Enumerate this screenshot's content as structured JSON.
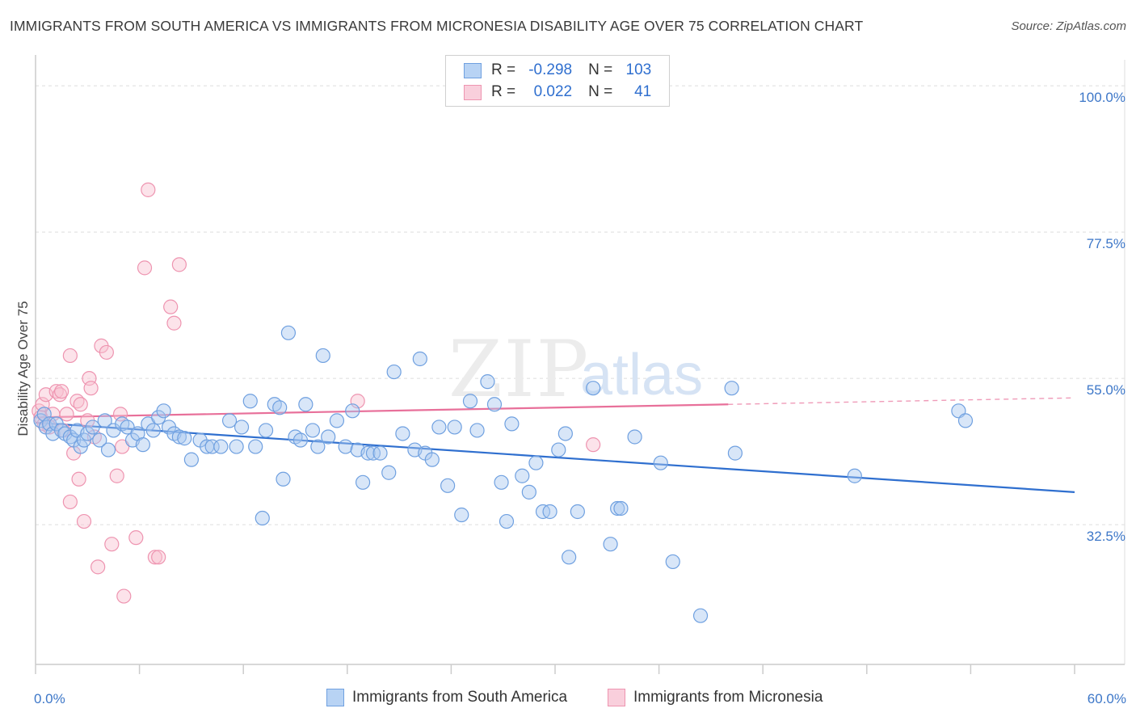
{
  "title": "IMMIGRANTS FROM SOUTH AMERICA VS IMMIGRANTS FROM MICRONESIA DISABILITY AGE OVER 75 CORRELATION CHART",
  "source": "Source: ZipAtlas.com",
  "legend": {
    "r_label": "R =",
    "n_label": "N =",
    "rows": [
      {
        "r": "-0.298",
        "n": "103"
      },
      {
        "r": "0.022",
        "n": "41"
      }
    ]
  },
  "watermark": {
    "zip": "ZIP",
    "atlas": "atlas"
  },
  "colors": {
    "blue_fill": "#a9c8f0",
    "blue_stroke": "#6fa0e0",
    "blue_line": "#2f6fcf",
    "pink_fill": "#f8c0d0",
    "pink_stroke": "#ee94b0",
    "pink_line": "#e8709a",
    "axis_text": "#3d77c8",
    "grid": "#dddddd"
  },
  "chart_data": {
    "type": "scatter",
    "title": "IMMIGRANTS FROM SOUTH AMERICA VS IMMIGRANTS FROM MICRONESIA DISABILITY AGE OVER 75 CORRELATION CHART",
    "xlabel": "",
    "ylabel": "Disability Age Over 75",
    "xlim": [
      0,
      60
    ],
    "ylim": [
      11,
      104
    ],
    "x_tick_labels": [
      "0.0%",
      "60.0%"
    ],
    "y_ticks": [
      32.5,
      55.0,
      77.5,
      100.0
    ],
    "y_tick_labels": [
      "32.5%",
      "55.0%",
      "77.5%",
      "100.0%"
    ],
    "grid": true,
    "series": [
      {
        "name": "Immigrants from South America",
        "color": "#6fa0e0",
        "trend": {
          "x": [
            0,
            60
          ],
          "y": [
            48.2,
            37.5
          ]
        },
        "points": [
          [
            0.3,
            48.5
          ],
          [
            0.5,
            49.5
          ],
          [
            0.6,
            47.5
          ],
          [
            0.8,
            48
          ],
          [
            1.0,
            46.5
          ],
          [
            1.2,
            48
          ],
          [
            1.5,
            47
          ],
          [
            1.7,
            46.5
          ],
          [
            2.0,
            46
          ],
          [
            2.2,
            45.5
          ],
          [
            2.4,
            47
          ],
          [
            2.6,
            44.5
          ],
          [
            2.8,
            45.5
          ],
          [
            3.0,
            46.5
          ],
          [
            3.3,
            47.5
          ],
          [
            3.7,
            45.5
          ],
          [
            4.0,
            48.5
          ],
          [
            4.2,
            44
          ],
          [
            4.5,
            47
          ],
          [
            5.0,
            48
          ],
          [
            5.3,
            47.5
          ],
          [
            5.6,
            45.5
          ],
          [
            5.9,
            46.5
          ],
          [
            6.2,
            44.8
          ],
          [
            6.5,
            48
          ],
          [
            6.8,
            47
          ],
          [
            7.1,
            49
          ],
          [
            7.4,
            50
          ],
          [
            7.7,
            47.5
          ],
          [
            8.0,
            46.5
          ],
          [
            8.3,
            46
          ],
          [
            8.6,
            45.8
          ],
          [
            9.0,
            42.5
          ],
          [
            9.5,
            45.5
          ],
          [
            9.9,
            44.5
          ],
          [
            10.2,
            44.5
          ],
          [
            10.7,
            44.5
          ],
          [
            11.2,
            48.5
          ],
          [
            11.6,
            44.5
          ],
          [
            11.9,
            47.5
          ],
          [
            12.4,
            51.5
          ],
          [
            12.7,
            44.5
          ],
          [
            13.1,
            33.5
          ],
          [
            13.3,
            47
          ],
          [
            13.8,
            51
          ],
          [
            14.1,
            50.5
          ],
          [
            14.3,
            39.5
          ],
          [
            14.6,
            62
          ],
          [
            15.0,
            46
          ],
          [
            15.3,
            45.5
          ],
          [
            15.6,
            51
          ],
          [
            16.0,
            47
          ],
          [
            16.3,
            44.5
          ],
          [
            16.6,
            58.5
          ],
          [
            16.9,
            46
          ],
          [
            17.4,
            48.5
          ],
          [
            17.9,
            44.5
          ],
          [
            18.3,
            50
          ],
          [
            18.6,
            44
          ],
          [
            18.9,
            39
          ],
          [
            19.2,
            43.5
          ],
          [
            19.5,
            43.5
          ],
          [
            19.9,
            43.5
          ],
          [
            20.4,
            40.5
          ],
          [
            20.7,
            56
          ],
          [
            21.2,
            46.5
          ],
          [
            21.9,
            44
          ],
          [
            22.2,
            58
          ],
          [
            22.5,
            43.5
          ],
          [
            22.9,
            42.5
          ],
          [
            23.3,
            47.5
          ],
          [
            23.8,
            38.5
          ],
          [
            24.2,
            47.5
          ],
          [
            24.6,
            34
          ],
          [
            25.1,
            51.5
          ],
          [
            25.5,
            47
          ],
          [
            26.1,
            54.5
          ],
          [
            26.5,
            51
          ],
          [
            26.9,
            39
          ],
          [
            27.2,
            33
          ],
          [
            27.5,
            48
          ],
          [
            28.1,
            40
          ],
          [
            28.5,
            37.5
          ],
          [
            28.9,
            42
          ],
          [
            29.3,
            34.5
          ],
          [
            29.7,
            34.5
          ],
          [
            30.2,
            44
          ],
          [
            30.8,
            27.5
          ],
          [
            31.3,
            34.5
          ],
          [
            32.2,
            53.5
          ],
          [
            33.2,
            29.5
          ],
          [
            33.6,
            35
          ],
          [
            33.8,
            35
          ],
          [
            34.6,
            46
          ],
          [
            36.1,
            42
          ],
          [
            36.8,
            26.8
          ],
          [
            38.4,
            18.5
          ],
          [
            40.2,
            53.5
          ],
          [
            40.4,
            43.5
          ],
          [
            47.3,
            40
          ],
          [
            53.3,
            50
          ],
          [
            53.7,
            48.5
          ],
          [
            30.6,
            46.5
          ]
        ]
      },
      {
        "name": "Immigrants from Micronesia",
        "color": "#ee94b0",
        "trend": {
          "x": [
            0,
            40
          ],
          "y": [
            49.0,
            51.0
          ]
        },
        "trend_dashed": {
          "x": [
            40,
            60
          ],
          "y": [
            51.0,
            52.0
          ]
        },
        "points": [
          [
            0.2,
            50
          ],
          [
            0.3,
            49
          ],
          [
            0.4,
            51
          ],
          [
            0.5,
            48
          ],
          [
            0.6,
            52.5
          ],
          [
            0.8,
            47.5
          ],
          [
            1.0,
            49.5
          ],
          [
            1.2,
            53
          ],
          [
            1.4,
            52.5
          ],
          [
            1.5,
            53
          ],
          [
            1.6,
            47
          ],
          [
            1.8,
            49.5
          ],
          [
            2.0,
            58.5
          ],
          [
            2.0,
            36
          ],
          [
            2.2,
            43.5
          ],
          [
            2.4,
            51.5
          ],
          [
            2.5,
            39.5
          ],
          [
            2.6,
            51
          ],
          [
            2.8,
            33
          ],
          [
            3.0,
            48.5
          ],
          [
            3.1,
            55
          ],
          [
            3.2,
            53.5
          ],
          [
            3.4,
            46
          ],
          [
            3.6,
            26
          ],
          [
            3.8,
            60
          ],
          [
            4.1,
            59
          ],
          [
            4.4,
            29.5
          ],
          [
            4.7,
            40
          ],
          [
            4.9,
            49.5
          ],
          [
            5.0,
            44.5
          ],
          [
            5.1,
            21.5
          ],
          [
            5.8,
            30.5
          ],
          [
            6.3,
            72
          ],
          [
            6.5,
            84
          ],
          [
            6.9,
            27.5
          ],
          [
            7.1,
            27.5
          ],
          [
            7.8,
            66
          ],
          [
            8.0,
            63.5
          ],
          [
            8.3,
            72.5
          ],
          [
            18.6,
            51.5
          ],
          [
            32.2,
            44.8
          ]
        ]
      }
    ]
  },
  "bottom_legend": [
    {
      "label": "Immigrants from South America"
    },
    {
      "label": "Immigrants from Micronesia"
    }
  ]
}
